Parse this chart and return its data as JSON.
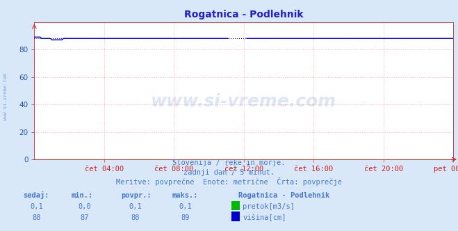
{
  "title": "Rogatnica - Podlehnik",
  "bg_color": "#d8e8f8",
  "plot_bg_color": "#ffffff",
  "grid_color": "#ffb0b0",
  "title_color": "#2020cc",
  "title_fontsize": 10,
  "axis_color": "#cc2222",
  "tick_color": "#2255aa",
  "tick_fontsize": 7.5,
  "x_labels": [
    "čet 04:00",
    "čet 08:00",
    "čet 12:00",
    "čet 16:00",
    "čet 20:00",
    "pet 00:00"
  ],
  "x_ticks": [
    4,
    8,
    12,
    16,
    20,
    24
  ],
  "ylim": [
    0,
    100
  ],
  "y_ticks": [
    0,
    20,
    40,
    60,
    80
  ],
  "flow_color": "#00bb00",
  "height_color": "#0000cc",
  "avg_line_color": "#0000aa",
  "watermark_text": "www.si-vreme.com",
  "watermark_color": "#4477cc",
  "watermark_alpha": 0.18,
  "watermark_fontsize": 18,
  "footer_line1": "Slovenija / reke in morje.",
  "footer_line2": "zadnji dan / 5 minut.",
  "footer_line3": "Meritve: povprečne  Enote: metrične  Črta: povprečje",
  "footer_color": "#4477cc",
  "footer_fontsize": 7.5,
  "table_headers": [
    "sedaj:",
    "min.:",
    "povpr.:",
    "maks.:"
  ],
  "table_flow": [
    "0,1",
    "0,0",
    "0,1",
    "0,1"
  ],
  "table_height": [
    "88",
    "87",
    "88",
    "89"
  ],
  "legend_title": "Rogatnica - Podlehnik",
  "legend_flow_label": "pretok[m3/s]",
  "legend_height_label": "višina[cm]",
  "sidebar_text": "www.si-vreme.com",
  "sidebar_color": "#4477cc",
  "sidebar_alpha": 0.6
}
